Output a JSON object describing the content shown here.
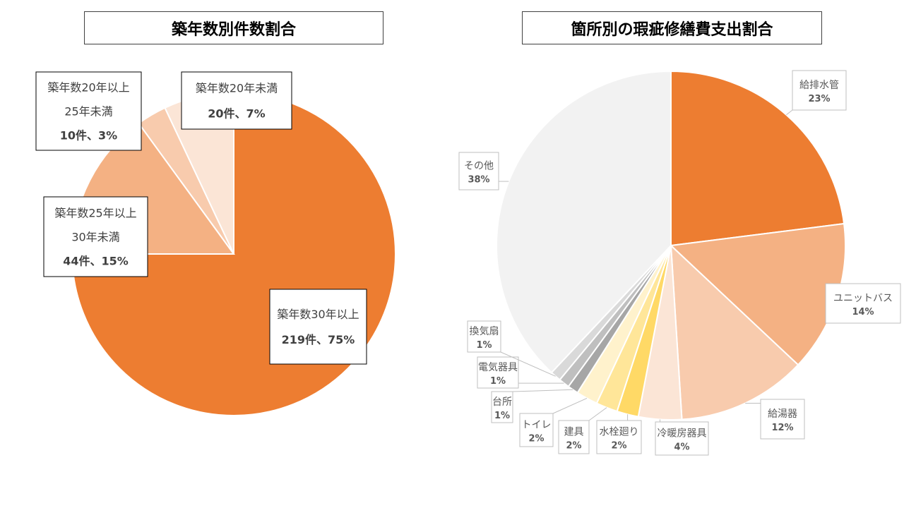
{
  "chart_data": [
    {
      "type": "pie",
      "title": "築年数別件数割合",
      "slices": [
        {
          "label_lines": [
            "築年数30年以上"
          ],
          "count_label": "219件、75%",
          "value": 75,
          "color": "#ed7d31"
        },
        {
          "label_lines": [
            "築年数25年以上",
            "30年未満"
          ],
          "count_label": "44件、15%",
          "value": 15,
          "color": "#f4b183"
        },
        {
          "label_lines": [
            "築年数20年以上",
            "25年未満"
          ],
          "count_label": "10件、3%",
          "value": 3,
          "color": "#f8cbad"
        },
        {
          "label_lines": [
            "築年数20年未満"
          ],
          "count_label": "20件、7%",
          "value": 7,
          "color": "#fbe5d6"
        }
      ]
    },
    {
      "type": "pie",
      "title": "箇所別の瑕疵修繕費支出割合",
      "slices": [
        {
          "label": "給排水管",
          "pct_label": "23%",
          "value": 23,
          "color": "#ed7d31"
        },
        {
          "label": "ユニットバス",
          "pct_label": "14%",
          "value": 14,
          "color": "#f4b183"
        },
        {
          "label": "給湯器",
          "pct_label": "12%",
          "value": 12,
          "color": "#f8cbad"
        },
        {
          "label": "冷暖房器具",
          "pct_label": "4%",
          "value": 4,
          "color": "#fbe5d6"
        },
        {
          "label": "水栓廻り",
          "pct_label": "2%",
          "value": 2,
          "color": "#ffd966"
        },
        {
          "label": "建具",
          "pct_label": "2%",
          "value": 2,
          "color": "#ffe699"
        },
        {
          "label": "トイレ",
          "pct_label": "2%",
          "value": 2,
          "color": "#fff2cc"
        },
        {
          "label": "台所",
          "pct_label": "1%",
          "value": 1,
          "color": "#a6a6a6"
        },
        {
          "label": "電気器具",
          "pct_label": "1%",
          "value": 1,
          "color": "#bfbfbf"
        },
        {
          "label": "換気扇",
          "pct_label": "1%",
          "value": 1,
          "color": "#d9d9d9"
        },
        {
          "label": "その他",
          "pct_label": "38%",
          "value": 38,
          "color": "#f2f2f2"
        }
      ]
    }
  ]
}
